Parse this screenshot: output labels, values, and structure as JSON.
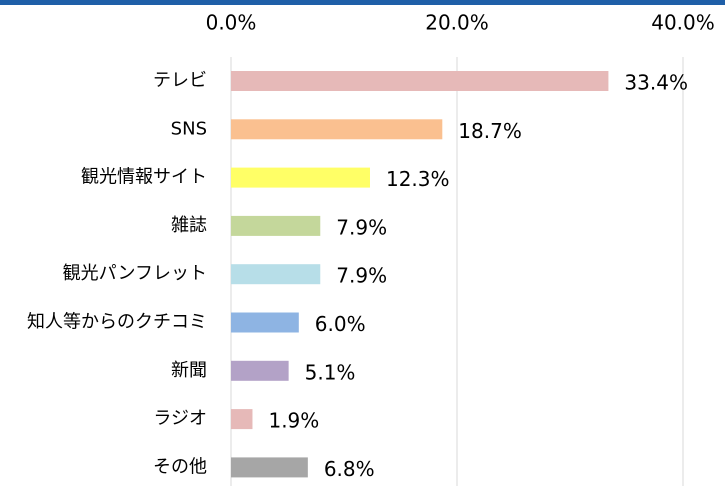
{
  "chart_data": {
    "type": "barh",
    "categories": [
      "テレビ",
      "SNS",
      "観光情報サイト",
      "雑誌",
      "観光パンフレット",
      "知人等からのクチコミ",
      "新聞",
      "ラジオ",
      "その他"
    ],
    "values": [
      33.4,
      18.7,
      12.3,
      7.9,
      7.9,
      6.0,
      5.1,
      1.9,
      6.8
    ],
    "value_labels": [
      "33.4%",
      "18.7%",
      "12.3%",
      "7.9%",
      "7.9%",
      "6.0%",
      "5.1%",
      "1.9%",
      "6.8%"
    ],
    "colors": [
      "#e6b9b8",
      "#fac090",
      "#ffff66",
      "#c4d79b",
      "#b7dee8",
      "#8eb4e3",
      "#b3a2c7",
      "#e6b9b8",
      "#a6a6a6"
    ],
    "xlim": [
      0,
      40
    ],
    "xticks": [
      {
        "value": 0,
        "label": "0.0%"
      },
      {
        "value": 20,
        "label": "20.0%"
      },
      {
        "value": 40,
        "label": "40.0%"
      }
    ],
    "grid": true
  }
}
